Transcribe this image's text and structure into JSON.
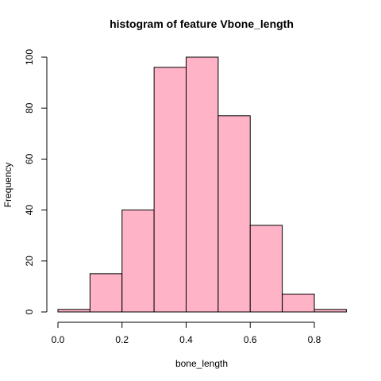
{
  "chart_data": {
    "type": "bar",
    "title": "histogram of feature Vbone_length",
    "xlabel": "bone_length",
    "ylabel": "Frequency",
    "bins": [
      {
        "start": 0.0,
        "end": 0.1,
        "count": 1
      },
      {
        "start": 0.1,
        "end": 0.2,
        "count": 15
      },
      {
        "start": 0.2,
        "end": 0.3,
        "count": 40
      },
      {
        "start": 0.3,
        "end": 0.4,
        "count": 96
      },
      {
        "start": 0.4,
        "end": 0.5,
        "count": 100
      },
      {
        "start": 0.5,
        "end": 0.6,
        "count": 77
      },
      {
        "start": 0.6,
        "end": 0.7,
        "count": 34
      },
      {
        "start": 0.7,
        "end": 0.8,
        "count": 7
      },
      {
        "start": 0.8,
        "end": 0.9,
        "count": 1
      }
    ],
    "xlim": [
      0,
      0.9
    ],
    "ylim": [
      0,
      100
    ],
    "x_ticks": [
      0.0,
      0.2,
      0.4,
      0.6,
      0.8
    ],
    "x_tick_labels": [
      "0.0",
      "0.2",
      "0.4",
      "0.6",
      "0.8"
    ],
    "y_ticks": [
      0,
      20,
      40,
      60,
      80,
      100
    ],
    "y_tick_labels": [
      "0",
      "20",
      "40",
      "60",
      "80",
      "100"
    ],
    "bar_color": "#ffb3c6",
    "grid": false
  }
}
